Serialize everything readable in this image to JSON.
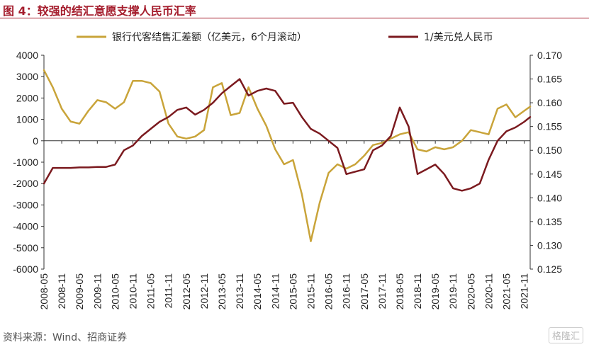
{
  "title": "图 4：较强的结汇意愿支撑人民币汇率",
  "source": "资料来源：Wind、招商证券",
  "watermark": "格隆汇",
  "chart_data": {
    "type": "line",
    "title": "图 4：较强的结汇意愿支撑人民币汇率",
    "legend_position": "top",
    "grid": false,
    "x": [
      "2008-05",
      "2008-08",
      "2008-11",
      "2009-02",
      "2009-05",
      "2009-08",
      "2009-11",
      "2010-02",
      "2010-05",
      "2010-08",
      "2010-11",
      "2011-02",
      "2011-05",
      "2011-08",
      "2011-11",
      "2012-02",
      "2012-05",
      "2012-08",
      "2012-11",
      "2013-02",
      "2013-05",
      "2013-08",
      "2013-11",
      "2014-02",
      "2014-05",
      "2014-08",
      "2014-11",
      "2015-02",
      "2015-05",
      "2015-08",
      "2015-11",
      "2016-02",
      "2016-05",
      "2016-08",
      "2016-11",
      "2017-02",
      "2017-05",
      "2017-08",
      "2017-11",
      "2018-02",
      "2018-05",
      "2018-08",
      "2018-11",
      "2019-02",
      "2019-05",
      "2019-08",
      "2019-11",
      "2020-02",
      "2020-05",
      "2020-08",
      "2020-11",
      "2021-02",
      "2021-05",
      "2021-08",
      "2021-11",
      "2022-01"
    ],
    "x_tick_labels": [
      "2008-05",
      "2008-11",
      "2009-05",
      "2009-11",
      "2010-05",
      "2010-11",
      "2011-05",
      "2011-11",
      "2012-05",
      "2012-11",
      "2013-05",
      "2013-11",
      "2014-05",
      "2014-11",
      "2015-05",
      "2015-11",
      "2016-05",
      "2016-11",
      "2017-05",
      "2017-11",
      "2018-05",
      "2018-11",
      "2019-05",
      "2019-11",
      "2020-05",
      "2020-11",
      "2021-05",
      "2021-11"
    ],
    "y_left": {
      "ticks": [
        "4000",
        "3000",
        "2000",
        "1000",
        "0",
        "-1000",
        "-2000",
        "-3000",
        "-4000",
        "-5000",
        "-6000"
      ],
      "ylim": [
        -6000,
        4000
      ]
    },
    "y_right": {
      "ticks": [
        "0.170",
        "0.165",
        "0.160",
        "0.155",
        "0.150",
        "0.145",
        "0.140",
        "0.135",
        "0.130",
        "0.125"
      ],
      "ylim": [
        0.125,
        0.17
      ]
    },
    "series": [
      {
        "name": "银行代客结售汇差额（亿美元，6个月滚动）",
        "axis": "left",
        "color": "#c9a43a",
        "values": [
          3300,
          2500,
          1500,
          900,
          800,
          1400,
          1900,
          1800,
          1500,
          1800,
          2800,
          2800,
          2700,
          2300,
          800,
          200,
          100,
          200,
          500,
          2500,
          2700,
          1200,
          1300,
          2500,
          1500,
          700,
          -400,
          -1100,
          -900,
          -2500,
          -4700,
          -2900,
          -1500,
          -1100,
          -1300,
          -1100,
          -700,
          -200,
          -100,
          100,
          300,
          400,
          -400,
          -500,
          -300,
          -400,
          -300,
          0,
          500,
          400,
          300,
          1500,
          1700,
          1100,
          1400,
          1600
        ]
      },
      {
        "name": "1/美元兑人民币",
        "axis": "right",
        "color": "#7b1a1f",
        "values": [
          0.143,
          0.1463,
          0.1463,
          0.1463,
          0.1464,
          0.1464,
          0.1465,
          0.1465,
          0.147,
          0.15,
          0.151,
          0.153,
          0.1545,
          0.156,
          0.157,
          0.1585,
          0.159,
          0.1575,
          0.1585,
          0.16,
          0.162,
          0.1635,
          0.165,
          0.1615,
          0.1625,
          0.163,
          0.1625,
          0.1598,
          0.16,
          0.157,
          0.1545,
          0.1535,
          0.152,
          0.1505,
          0.145,
          0.1455,
          0.146,
          0.15,
          0.151,
          0.153,
          0.159,
          0.155,
          0.145,
          0.146,
          0.147,
          0.145,
          0.142,
          0.1415,
          0.142,
          0.143,
          0.148,
          0.152,
          0.154,
          0.1548,
          0.156,
          0.157
        ]
      }
    ]
  }
}
